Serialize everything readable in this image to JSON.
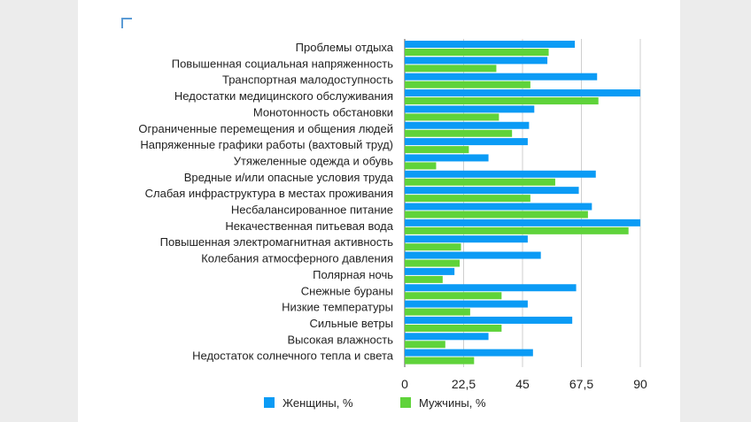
{
  "chart_data": {
    "type": "bar",
    "orientation": "horizontal",
    "title": "",
    "xlabel": "",
    "ylabel": "",
    "xlim": [
      0,
      90
    ],
    "xticks": [
      "0",
      "22,5",
      "45",
      "67,5",
      "90"
    ],
    "grid": true,
    "legend_position": "bottom",
    "categories": [
      "Проблемы отдыха",
      "Повышенная социальная напряженность",
      "Транспортная малодоступность",
      "Недостатки медицинского обслуживания",
      "Монотонность обстановки",
      "Ограниченные перемещения и общения людей",
      "Напряженные графики работы (вахтовый труд)",
      "Утяжеленные одежда и обувь",
      "Вредные и/или опасные условия труда",
      "Слабая инфраструктура в местах проживания",
      "Несбалансированное питание",
      "Некачественная питьевая вода",
      "Повышенная электромагнитная активность",
      "Колебания атмосферного давления",
      "Полярная ночь",
      "Снежные бураны",
      "Низкие температуры",
      "Сильные ветры",
      "Высокая влажность",
      "Недостаток солнечного тепла и света"
    ],
    "series": [
      {
        "name": "Женщины, %",
        "color": "#0b9bf5",
        "values": [
          65,
          54.5,
          73.5,
          90,
          49.5,
          47.5,
          47,
          32,
          73,
          66.5,
          71.5,
          90,
          47,
          52,
          19,
          65.5,
          47,
          64,
          32,
          49
        ]
      },
      {
        "name": "Мужчины, %",
        "color": "#5fd33a",
        "values": [
          55,
          35,
          48,
          74,
          36,
          41,
          24.5,
          12,
          57.5,
          48,
          70,
          85.5,
          21.5,
          21,
          14.5,
          37,
          25,
          37,
          15.5,
          26.5
        ]
      }
    ]
  }
}
